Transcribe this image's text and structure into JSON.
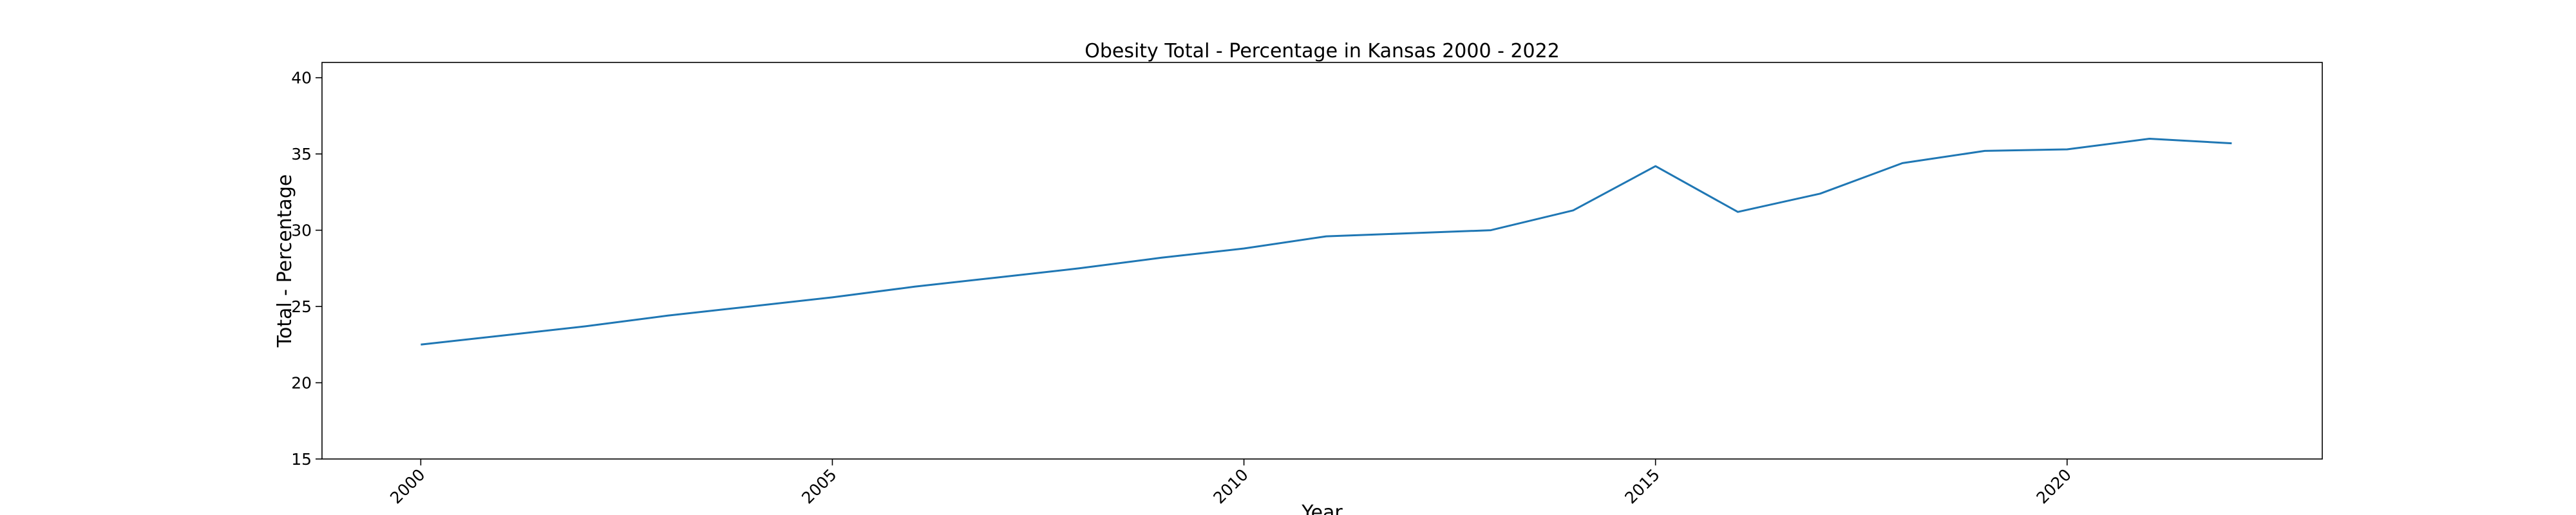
{
  "chart_data": {
    "type": "line",
    "title": "Obesity Total - Percentage in Kansas 2000 - 2022",
    "xlabel": "Year",
    "ylabel": "Total - Percentage",
    "x": [
      2000,
      2001,
      2002,
      2003,
      2004,
      2005,
      2006,
      2007,
      2008,
      2009,
      2010,
      2011,
      2012,
      2013,
      2014,
      2015,
      2016,
      2017,
      2018,
      2019,
      2020,
      2021,
      2022
    ],
    "series": [
      {
        "values": [
          22.5,
          23.1,
          23.7,
          24.4,
          25.0,
          25.6,
          26.3,
          26.9,
          27.5,
          28.2,
          28.8,
          29.6,
          29.8,
          30.0,
          31.3,
          34.2,
          31.2,
          32.4,
          34.4,
          35.2,
          35.3,
          36.0,
          35.7
        ],
        "color": "#1f77b4"
      }
    ],
    "xlim": [
      1998.8,
      2023.1
    ],
    "ylim": [
      15,
      41
    ],
    "xticks": [
      2000,
      2005,
      2010,
      2015,
      2020
    ],
    "yticks": [
      15,
      20,
      25,
      30,
      35,
      40
    ],
    "grid": false,
    "legend": "none"
  }
}
